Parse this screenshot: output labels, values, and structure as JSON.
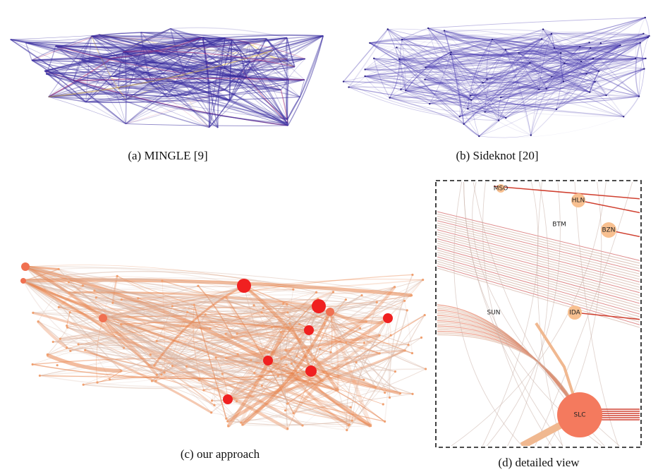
{
  "figure": {
    "panels": [
      {
        "caption": "(a) MINGLE [9]"
      },
      {
        "caption": "(b) Sideknot [20]"
      },
      {
        "caption": "(c) our approach"
      },
      {
        "caption": "(d) detailed view",
        "nodes": [
          {
            "label": "MSO"
          },
          {
            "label": "HLN"
          },
          {
            "label": "BTM"
          },
          {
            "label": "BZN"
          },
          {
            "label": "SUN"
          },
          {
            "label": "IDA"
          },
          {
            "label": "SLC"
          }
        ]
      }
    ]
  }
}
